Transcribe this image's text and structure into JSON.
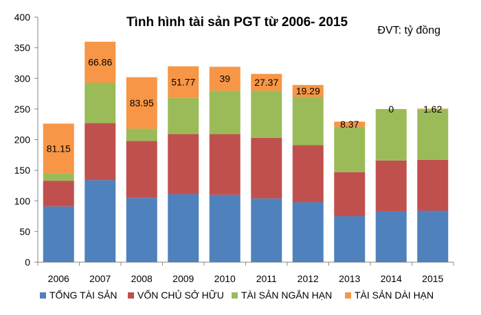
{
  "chart_data": {
    "type": "bar",
    "stacked": true,
    "title": "Tình hình tài sản PGT từ 2006- 2015",
    "unit": "ĐVT: tỷ đồng",
    "xlabel": "",
    "ylabel": "",
    "ylim": [
      0,
      400
    ],
    "yticks": [
      0,
      50,
      100,
      150,
      200,
      250,
      300,
      350,
      400
    ],
    "grid": false,
    "legend_position": "bottom",
    "categories": [
      "2006",
      "2007",
      "2008",
      "2009",
      "2010",
      "2011",
      "2012",
      "2013",
      "2014",
      "2015"
    ],
    "series": [
      {
        "name": "TỔNG TÀI SẢN",
        "color": "#4F81BD",
        "values": [
          91,
          134,
          105,
          111,
          110,
          104,
          98,
          75,
          83,
          84
        ]
      },
      {
        "name": "VỐN CHỦ SỞ HỮU",
        "color": "#C0504D",
        "values": [
          42,
          93,
          93,
          98,
          99,
          99,
          93,
          72,
          83,
          83
        ]
      },
      {
        "name": "TÀI SẢN NGẮN HẠN",
        "color": "#9BBB59",
        "values": [
          12,
          66,
          20,
          59,
          71,
          77,
          79,
          74,
          84,
          82
        ]
      },
      {
        "name": "TÀI SẢN DÀI HẠN",
        "color": "#F79646",
        "values": [
          81.15,
          66.86,
          83.95,
          51.77,
          39,
          27.37,
          19.29,
          8.37,
          0,
          1.62
        ]
      }
    ],
    "data_labels": [
      "81.15",
      "66.86",
      "83.95",
      "51.77",
      "39",
      "27.37",
      "19.29",
      "8.37",
      "0",
      "1.62"
    ]
  }
}
